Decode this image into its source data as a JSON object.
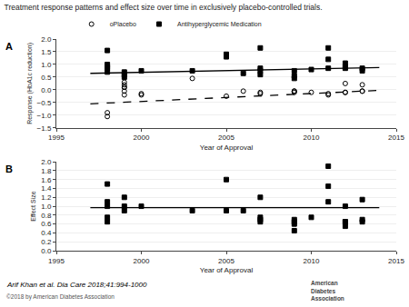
{
  "chart_data": [
    {
      "type": "scatter",
      "title": "Treatment response patterns and effect size over time in exclusively placebo-controlled trials.",
      "x_label": "Year of Approval",
      "y_label": "Response (HbA1c reduction)",
      "xlim": [
        1995,
        2015
      ],
      "ylim": [
        -1.5,
        2.0
      ],
      "xticks": [
        1995,
        2000,
        2005,
        2010,
        2015
      ],
      "yticks": [
        {
          "value": -1.5,
          "label": "−1.5"
        },
        {
          "value": -1.0,
          "label": "−1.0"
        },
        {
          "value": -0.5,
          "label": "−0.5"
        },
        {
          "value": 0.0,
          "label": "0.0"
        },
        0.5,
        {
          "value": 1.0,
          "label": "1.0"
        },
        1.5,
        {
          "value": 2.0,
          "label": "2.0"
        }
      ],
      "grid": "y",
      "legend": "upper left",
      "annotations": [
        "A"
      ],
      "series": [
        {
          "name": "oPlacebo",
          "type": "scatter",
          "marker": "circle-open",
          "color": "#000000",
          "x": [
            1998,
            1998,
            1999,
            1999,
            1999,
            1999,
            1999,
            1999,
            2000,
            2000,
            2003,
            2005,
            2006,
            2007,
            2007,
            2009,
            2009,
            2009,
            2010,
            2011,
            2011,
            2012,
            2012,
            2012,
            2013,
            2013,
            2013
          ],
          "values": [
            -0.9,
            -1.05,
            -0.2,
            -0.05,
            0.1,
            0.2,
            0.3,
            0.1,
            -0.15,
            -0.2,
            0.45,
            -0.25,
            -0.05,
            -0.15,
            -0.1,
            -0.1,
            -0.05,
            -0.05,
            -0.1,
            -0.2,
            -0.15,
            -0.1,
            -0.1,
            0.25,
            -0.05,
            -0.05,
            0.2
          ]
        },
        {
          "name": "Antihyperglycemic Medication",
          "type": "scatter",
          "marker": "square",
          "color": "#000000",
          "x": [
            1998,
            1998,
            1998,
            1998,
            1998,
            1999,
            1999,
            1999,
            2000,
            2003,
            2005,
            2005,
            2006,
            2007,
            2007,
            2007,
            2007,
            2009,
            2009,
            2009,
            2010,
            2011,
            2011,
            2011,
            2012,
            2012,
            2012,
            2013,
            2013
          ],
          "values": [
            0.7,
            0.85,
            0.9,
            1.0,
            1.55,
            0.5,
            0.6,
            0.7,
            0.75,
            0.75,
            1.3,
            1.4,
            0.65,
            0.6,
            0.75,
            0.85,
            1.65,
            0.45,
            0.55,
            0.75,
            0.8,
            1.2,
            1.65,
            0.85,
            0.85,
            0.9,
            1.05,
            0.75,
            0.85
          ]
        },
        {
          "type": "line",
          "line_style": "dash",
          "color": "#000000",
          "x": [
            1997,
            2014
          ],
          "values": [
            -0.55,
            -0.02
          ]
        },
        {
          "type": "line",
          "line_style": "solid",
          "color": "#000000",
          "x": [
            1997,
            2014
          ],
          "values": [
            0.65,
            0.88
          ]
        }
      ]
    },
    {
      "type": "scatter",
      "x_label": "Year of Approval",
      "y_label": "Effect Size",
      "xlim": [
        1995,
        2015
      ],
      "ylim": [
        0,
        2.0
      ],
      "xticks": [
        1995,
        2000,
        2005,
        2010,
        2015
      ],
      "yticks": [
        {
          "value": 0,
          "label": "0.0"
        },
        0.2,
        0.4,
        0.6,
        0.8,
        {
          "value": 1.0,
          "label": "1.0"
        },
        1.2,
        1.4,
        1.6,
        1.8,
        {
          "value": 2.0,
          "label": "2.0"
        }
      ],
      "grid": "y",
      "annotations": [
        "B",
        "Arif Khan et al. Dia Care 2018;41:994-1000",
        "©2018 by American Diabetes Association",
        "American",
        "Diabetes",
        "Association"
      ],
      "series": [
        {
          "type": "scatter",
          "marker": "square",
          "color": "#000000",
          "x": [
            1998,
            1998,
            1998,
            1998,
            1998,
            1999,
            1999,
            1999,
            2000,
            2003,
            2005,
            2005,
            2006,
            2007,
            2007,
            2007,
            2007,
            2009,
            2009,
            2009,
            2009,
            2010,
            2011,
            2011,
            2011,
            2012,
            2012,
            2012,
            2012,
            2013,
            2013,
            2013
          ],
          "values": [
            0.65,
            0.75,
            1.0,
            1.1,
            1.5,
            0.9,
            1.0,
            1.2,
            1.0,
            0.9,
            0.9,
            1.6,
            0.9,
            1.2,
            0.65,
            0.7,
            0.75,
            0.45,
            0.6,
            0.65,
            0.7,
            0.75,
            1.9,
            1.45,
            1.1,
            0.55,
            0.65,
            0.65,
            1.0,
            0.65,
            0.7,
            1.15
          ]
        },
        {
          "type": "line",
          "line_style": "solid",
          "color": "#000000",
          "x": [
            1997,
            2014
          ],
          "values": [
            0.97,
            0.97
          ]
        }
      ]
    }
  ]
}
